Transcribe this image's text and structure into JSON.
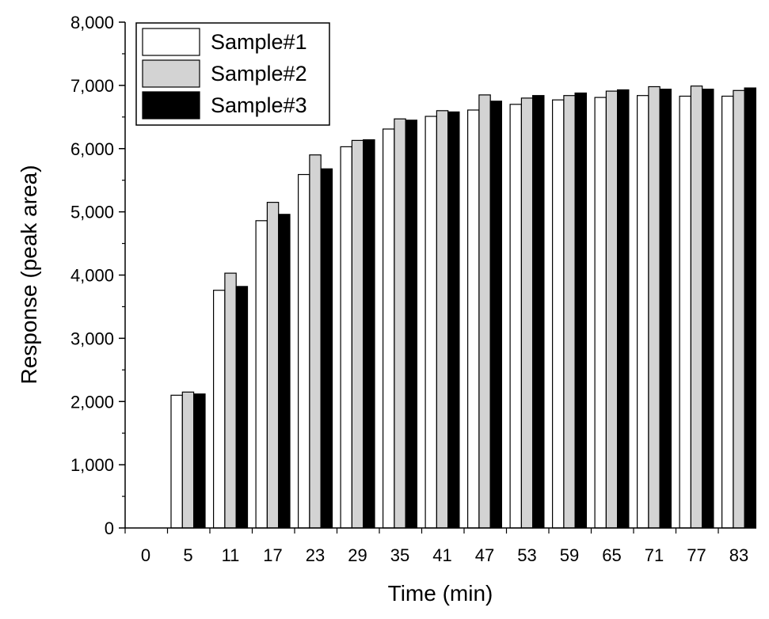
{
  "chart_data": {
    "type": "bar",
    "xlabel": "Time (min)",
    "ylabel": "Response (peak area)",
    "ylim": [
      0,
      8000
    ],
    "y_ticks": [
      "0",
      "1,000",
      "2,000",
      "3,000",
      "4,000",
      "5,000",
      "6,000",
      "7,000",
      "8,000"
    ],
    "categories": [
      "0",
      "5",
      "11",
      "17",
      "23",
      "29",
      "35",
      "41",
      "47",
      "53",
      "59",
      "65",
      "71",
      "77",
      "83"
    ],
    "legend_position": "top-left",
    "grid": false,
    "series": [
      {
        "name": "Sample#1",
        "color": "#ffffff",
        "values": [
          0,
          2100,
          3760,
          4860,
          5590,
          6030,
          6310,
          6510,
          6610,
          6700,
          6770,
          6810,
          6840,
          6830,
          6830
        ]
      },
      {
        "name": "Sample#2",
        "color": "#d3d3d3",
        "values": [
          0,
          2150,
          4030,
          5150,
          5900,
          6130,
          6470,
          6600,
          6850,
          6800,
          6840,
          6910,
          6980,
          6990,
          6920
        ]
      },
      {
        "name": "Sample#3",
        "color": "#000000",
        "values": [
          0,
          2120,
          3820,
          4960,
          5680,
          6140,
          6450,
          6580,
          6750,
          6840,
          6880,
          6930,
          6940,
          6940,
          6960
        ]
      }
    ]
  }
}
